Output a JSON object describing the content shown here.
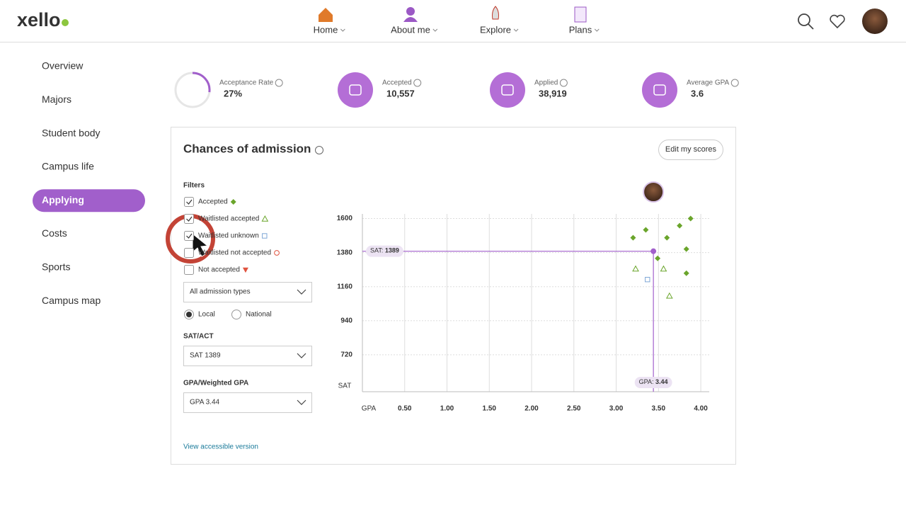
{
  "header": {
    "logo": "xello",
    "nav": [
      "Home",
      "About me",
      "Explore",
      "Plans"
    ]
  },
  "sidebar": {
    "items": [
      "Overview",
      "Majors",
      "Student body",
      "Campus life",
      "Applying",
      "Costs",
      "Sports",
      "Campus map"
    ],
    "active": 4
  },
  "stats": [
    {
      "label": "Acceptance Rate",
      "value": 27,
      "value_label": "27%"
    },
    {
      "label": "Accepted",
      "value": "10,557"
    },
    {
      "label": "Applied",
      "value": "38,919"
    },
    {
      "label": "Average GPA",
      "value": "3.6"
    }
  ],
  "card": {
    "title": "Chances of admission",
    "edit_button": "Edit my scores",
    "filters_title": "Filters",
    "admission_type": "All admission types",
    "location_options": [
      "Local",
      "National"
    ],
    "location_selected": 0,
    "sat_title": "SAT/ACT",
    "sat_select": "SAT 1389",
    "gpa_title": "GPA/Weighted GPA",
    "gpa_select": "GPA 3.44",
    "accessible_link": "View accessible version"
  },
  "chart_data": {
    "type": "scatter",
    "x_label": "GPA",
    "y_label": "SAT",
    "xlim": [
      0,
      4.1
    ],
    "ylim": [
      518,
      1630
    ],
    "xticks": [
      {
        "value": 0.5,
        "label": "0.50"
      },
      {
        "value": 1,
        "label": "1.00"
      },
      {
        "value": 1.5,
        "label": "1.50"
      },
      {
        "value": 2,
        "label": "2.00"
      },
      {
        "value": 2.5,
        "label": "2.50"
      },
      {
        "value": 3,
        "label": "3.00"
      },
      {
        "value": 3.5,
        "label": "3.50"
      },
      {
        "value": 4,
        "label": "4.00"
      }
    ],
    "yticks": [
      1600,
      1380,
      1160,
      940,
      720
    ],
    "grid": true,
    "series": [
      {
        "name": "Accepted",
        "color": "#6aa52b",
        "marker": "diamond",
        "checked": true,
        "x": [
          3.88,
          3.75,
          3.35,
          3.2,
          3.6,
          3.49,
          3.83,
          3.83
        ],
        "values": [
          1600,
          1554,
          1527,
          1476,
          1476,
          1343,
          1403,
          1247
        ]
      },
      {
        "name": "Waitlisted accepted",
        "color": "#6aa52b",
        "marker": "triangle",
        "checked": true,
        "x": [
          3.23,
          3.56,
          3.63
        ],
        "values": [
          1275,
          1275,
          1100
        ]
      },
      {
        "name": "Waitlisted unknown",
        "color": "#7fa7d6",
        "marker": "square",
        "checked": true,
        "x": [
          3.37
        ],
        "values": [
          1206
        ]
      },
      {
        "name": "Waitlisted not accepted",
        "color": "#e0533f",
        "marker": "circle",
        "checked": false,
        "x": [],
        "values": []
      },
      {
        "name": "Not accepted",
        "color": "#e0533f",
        "marker": "triangle-down",
        "checked": false,
        "x": [],
        "values": []
      }
    ],
    "student": {
      "x": 3.44,
      "y": 1389,
      "x_label": "GPA:",
      "y_label": "SAT:"
    }
  }
}
